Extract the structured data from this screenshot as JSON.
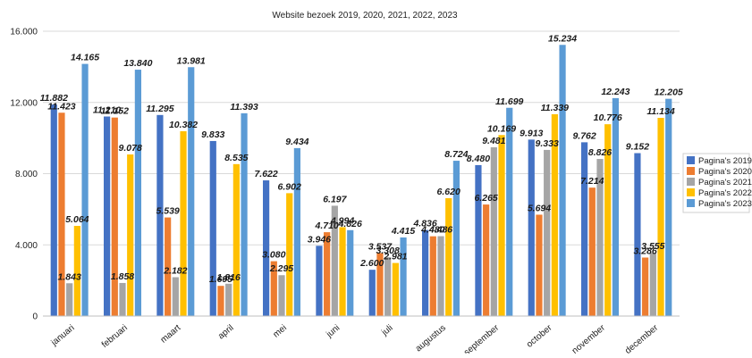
{
  "chart_data": {
    "type": "bar",
    "title": "Website bezoek 2019, 2020, 2021, 2022, 2023",
    "xlabel": "",
    "ylabel": "",
    "ylim": [
      0,
      16000
    ],
    "yticks": [
      "0",
      "4.000",
      "8.000",
      "12.000",
      "16.000"
    ],
    "grid": true,
    "legend_position": "right",
    "categories": [
      "januari",
      "februari",
      "maart",
      "april",
      "mei",
      "juni",
      "juli",
      "augustus",
      "september",
      "october",
      "november",
      "december"
    ],
    "series": [
      {
        "name": "Pagina's 2019",
        "color": "#4472c4",
        "values": [
          11882,
          11210,
          11295,
          9833,
          7622,
          3946,
          2600,
          4836,
          8480,
          9913,
          9762,
          9152
        ],
        "labels": [
          "11.882",
          "11.210",
          "11.295",
          "9.833",
          "7.622",
          "3.946",
          "2.600",
          "4.836",
          "8.480",
          "9.913",
          "9.762",
          "9.152"
        ]
      },
      {
        "name": "Pagina's 2020",
        "color": "#ed7d31",
        "values": [
          11423,
          11152,
          5539,
          1695,
          3080,
          4710,
          3537,
          4480,
          6265,
          5694,
          7214,
          3286
        ],
        "labels": [
          "11.423",
          "11.152",
          "5.539",
          "1.695",
          "3.080",
          "4.710",
          "3.537",
          "4.480",
          "6.265",
          "5.694",
          "7.214",
          "3.286"
        ]
      },
      {
        "name": "Pagina's 2021",
        "color": "#a5a5a5",
        "values": [
          1843,
          1858,
          2182,
          1816,
          2295,
          6197,
          3308,
          4486,
          9481,
          9333,
          8826,
          3555
        ],
        "labels": [
          "1.843",
          "1.858",
          "2.182",
          "1.816",
          "2.295",
          "6.197",
          "3.308",
          "4.486",
          "9.481",
          "9.333",
          "8.826",
          "3.555"
        ]
      },
      {
        "name": "Pagina's 2022",
        "color": "#ffc000",
        "values": [
          5064,
          9078,
          10382,
          8535,
          6902,
          4994,
          2981,
          6620,
          10169,
          11339,
          10776,
          11134
        ],
        "labels": [
          "5.064",
          "9.078",
          "10.382",
          "8.535",
          "6.902",
          "4.994",
          "2.981",
          "6.620",
          "10.169",
          "11.339",
          "10.776",
          "11.134"
        ]
      },
      {
        "name": "Pagina's 2023",
        "color": "#5b9bd5",
        "values": [
          14165,
          13840,
          13981,
          11393,
          9434,
          4826,
          4415,
          8724,
          11699,
          15234,
          12243,
          12205
        ],
        "labels": [
          "14.165",
          "13.840",
          "13.981",
          "11.393",
          "9.434",
          "4.826",
          "4.415",
          "8.724",
          "11.699",
          "15.234",
          "12.243",
          "12.205"
        ]
      }
    ]
  }
}
